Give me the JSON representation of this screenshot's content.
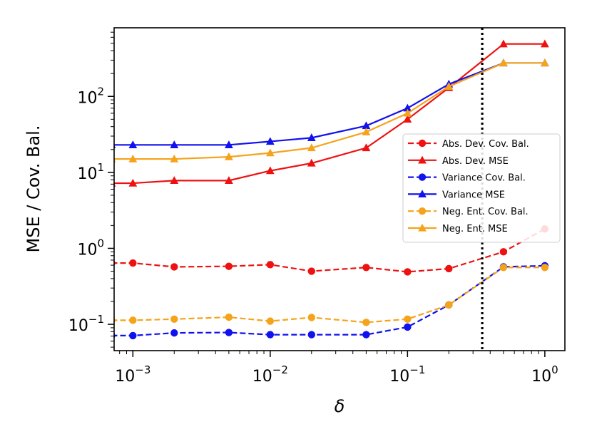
{
  "chart_data": {
    "type": "line",
    "xlabel": "δ",
    "ylabel": "MSE / Cov. Bal.",
    "xscale": "log",
    "yscale": "log",
    "xlim": [
      0.00073,
      1.4
    ],
    "ylim": [
      0.045,
      800
    ],
    "x_ticks": [
      {
        "value": 0.001,
        "base": "10",
        "exp": "−3"
      },
      {
        "value": 0.01,
        "base": "10",
        "exp": "−2"
      },
      {
        "value": 0.1,
        "base": "10",
        "exp": "−1"
      },
      {
        "value": 1,
        "base": "10",
        "exp": "0"
      }
    ],
    "y_ticks": [
      {
        "value": 0.1,
        "base": "10",
        "exp": "−1"
      },
      {
        "value": 1,
        "base": "10",
        "exp": "0"
      },
      {
        "value": 10,
        "base": "10",
        "exp": "1"
      },
      {
        "value": 100,
        "base": "10",
        "exp": "2"
      }
    ],
    "vline": {
      "x": 0.35,
      "style": "dotted",
      "color": "#000000"
    },
    "legend_position": "center-right",
    "x": [
      0.0007,
      0.001,
      0.002,
      0.005,
      0.01,
      0.02,
      0.05,
      0.1,
      0.2,
      0.5,
      1.0
    ],
    "series": [
      {
        "name": "Abs. Dev. Cov. Bal.",
        "color": "#ee1111",
        "dash": "dashed",
        "marker": "circle",
        "values": [
          0.64,
          0.64,
          0.57,
          0.58,
          0.61,
          0.5,
          0.56,
          0.49,
          0.54,
          0.9,
          1.8
        ]
      },
      {
        "name": "Abs. Dev. MSE",
        "color": "#ee1111",
        "dash": "solid",
        "marker": "triangle",
        "values": [
          7.2,
          7.2,
          7.8,
          7.8,
          10.5,
          13.2,
          21,
          50,
          130,
          490,
          490
        ]
      },
      {
        "name": "Variance Cov. Bal.",
        "color": "#1111ee",
        "dash": "dashed",
        "marker": "circle",
        "values": [
          0.071,
          0.071,
          0.077,
          0.078,
          0.073,
          0.073,
          0.073,
          0.092,
          0.18,
          0.57,
          0.59
        ]
      },
      {
        "name": "Variance MSE",
        "color": "#1111ee",
        "dash": "solid",
        "marker": "triangle",
        "values": [
          23,
          23,
          23,
          23,
          25.5,
          28.5,
          41,
          70,
          145,
          275,
          275
        ]
      },
      {
        "name": "Neg. Ent. Cov. Bal.",
        "color": "#f5a31a",
        "dash": "dashed",
        "marker": "circle",
        "values": [
          0.113,
          0.113,
          0.117,
          0.124,
          0.11,
          0.123,
          0.106,
          0.117,
          0.18,
          0.56,
          0.56
        ]
      },
      {
        "name": "Neg. Ent. MSE",
        "color": "#f5a31a",
        "dash": "solid",
        "marker": "triangle",
        "values": [
          15,
          15,
          15,
          16,
          18,
          21,
          34,
          60,
          135,
          275,
          275
        ]
      }
    ]
  }
}
